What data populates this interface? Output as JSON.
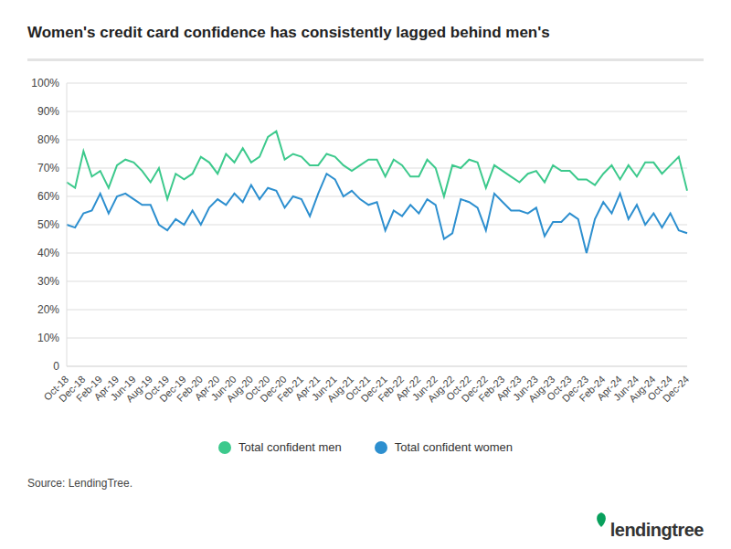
{
  "chart_data": {
    "type": "line",
    "title": "Women's credit card confidence has consistently lagged behind men's",
    "categories": [
      "Oct-18",
      null,
      "Dec-18",
      null,
      "Feb-19",
      null,
      "Apr-19",
      null,
      "Jun-19",
      null,
      "Aug-19",
      null,
      "Oct-19",
      null,
      "Dec-19",
      null,
      "Feb-20",
      null,
      "Apr-20",
      null,
      "Jun-20",
      null,
      "Aug-20",
      null,
      "Oct-20",
      null,
      "Dec-20",
      null,
      "Feb-21",
      null,
      "Apr-21",
      null,
      "Jun-21",
      null,
      "Aug-21",
      null,
      "Oct-21",
      null,
      "Dec-21",
      null,
      "Feb-22",
      null,
      "Apr-22",
      null,
      "Jun-22",
      null,
      "Aug-22",
      null,
      "Oct-22",
      null,
      "Dec-22",
      null,
      "Feb-23",
      null,
      "Apr-23",
      null,
      "Jun-23",
      null,
      "Aug-23",
      null,
      "Oct-23",
      null,
      "Dec-23",
      null,
      "Feb-24",
      null,
      "Apr-24",
      null,
      "Jun-24",
      null,
      "Aug-24",
      null,
      "Oct-24",
      null,
      "Dec-24"
    ],
    "series": [
      {
        "name": "Total confident men",
        "color": "#3cc98c",
        "values": [
          65,
          63,
          76,
          67,
          69,
          63,
          71,
          73,
          72,
          69,
          65,
          70,
          59,
          68,
          66,
          68,
          74,
          72,
          68,
          75,
          72,
          77,
          72,
          74,
          81,
          83,
          73,
          75,
          74,
          71,
          71,
          75,
          74,
          71,
          69,
          71,
          73,
          73,
          67,
          73,
          71,
          67,
          67,
          73,
          70,
          60,
          71,
          70,
          73,
          72,
          63,
          71,
          69,
          67,
          65,
          68,
          69,
          65,
          71,
          69,
          69,
          66,
          66,
          64,
          68,
          71,
          66,
          71,
          67,
          72,
          72,
          68,
          71,
          74,
          62
        ]
      },
      {
        "name": "Total confident women",
        "color": "#2d8fcf",
        "values": [
          50,
          49,
          54,
          55,
          61,
          54,
          60,
          61,
          59,
          57,
          57,
          50,
          48,
          52,
          50,
          55,
          50,
          56,
          59,
          57,
          61,
          58,
          64,
          59,
          63,
          62,
          56,
          60,
          59,
          53,
          61,
          68,
          66,
          60,
          62,
          59,
          57,
          58,
          48,
          55,
          53,
          57,
          54,
          59,
          57,
          45,
          47,
          59,
          58,
          56,
          48,
          61,
          58,
          55,
          55,
          54,
          56,
          46,
          51,
          51,
          54,
          52,
          40,
          52,
          58,
          54,
          61,
          52,
          57,
          50,
          54,
          49,
          54,
          48,
          47
        ]
      }
    ],
    "ylim": [
      0,
      100
    ],
    "yticks": [
      0,
      {
        "value": 10,
        "label": "10%"
      },
      {
        "value": 20,
        "label": "20%"
      },
      {
        "value": 30,
        "label": "30%"
      },
      {
        "value": 40,
        "label": "40%"
      },
      {
        "value": 50,
        "label": "50%"
      },
      {
        "value": 60,
        "label": "60%"
      },
      {
        "value": 70,
        "label": "70%"
      },
      {
        "value": 80,
        "label": "80%"
      },
      {
        "value": 90,
        "label": "90%"
      },
      {
        "value": 100,
        "label": "100%"
      }
    ],
    "grid": true,
    "legend": "bottom"
  },
  "source": "Source: LendingTree.",
  "logo": "lendingtree"
}
